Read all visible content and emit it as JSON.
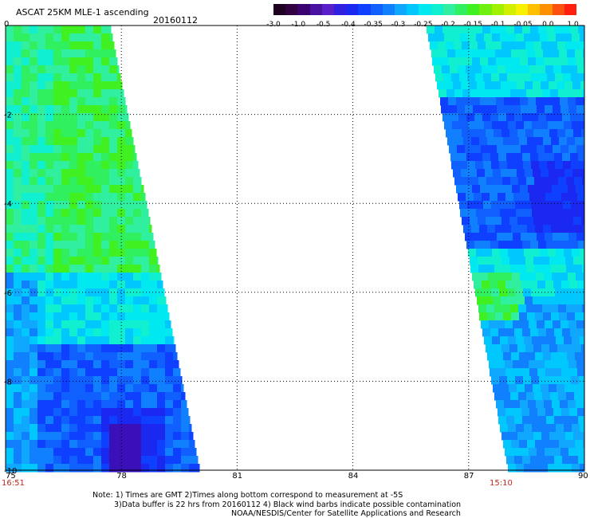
{
  "header": {
    "title": "ASCAT 25KM MLE-1 ascending",
    "date": "20160112"
  },
  "colorbar": {
    "labels": [
      "-3.0",
      "-1.0",
      "-0.5",
      "-0.4",
      "-0.35",
      "-0.3",
      "-0.25",
      "-0.2",
      "-0.15",
      "-0.1",
      "-0.05",
      "0.0",
      "1.0"
    ],
    "colors": [
      "#200020",
      "#3a0070",
      "#5a20c8",
      "#1a28f0",
      "#1060ff",
      "#10a8ff",
      "#00e8f0",
      "#30f0a0",
      "#40f020",
      "#a0f000",
      "#f8f000",
      "#ff9000",
      "#ff2010"
    ]
  },
  "axes": {
    "x_ticks": [
      "75",
      "78",
      "81",
      "84",
      "87",
      "90"
    ],
    "y_ticks": [
      "0",
      "-2",
      "-4",
      "-6",
      "-8",
      "-10"
    ]
  },
  "times": {
    "left": "16:51",
    "right": "15:10"
  },
  "notes": {
    "line1": "Note: 1) Times are GMT 2)Times along bottom correspond to measurement at -5S",
    "line2": "3)Data buffer is 22 hrs from 20160112 4) Black wind barbs indicate possible contamination",
    "line3": "NOAA/NESDIS/Center for Satellite Applications and Research"
  }
}
